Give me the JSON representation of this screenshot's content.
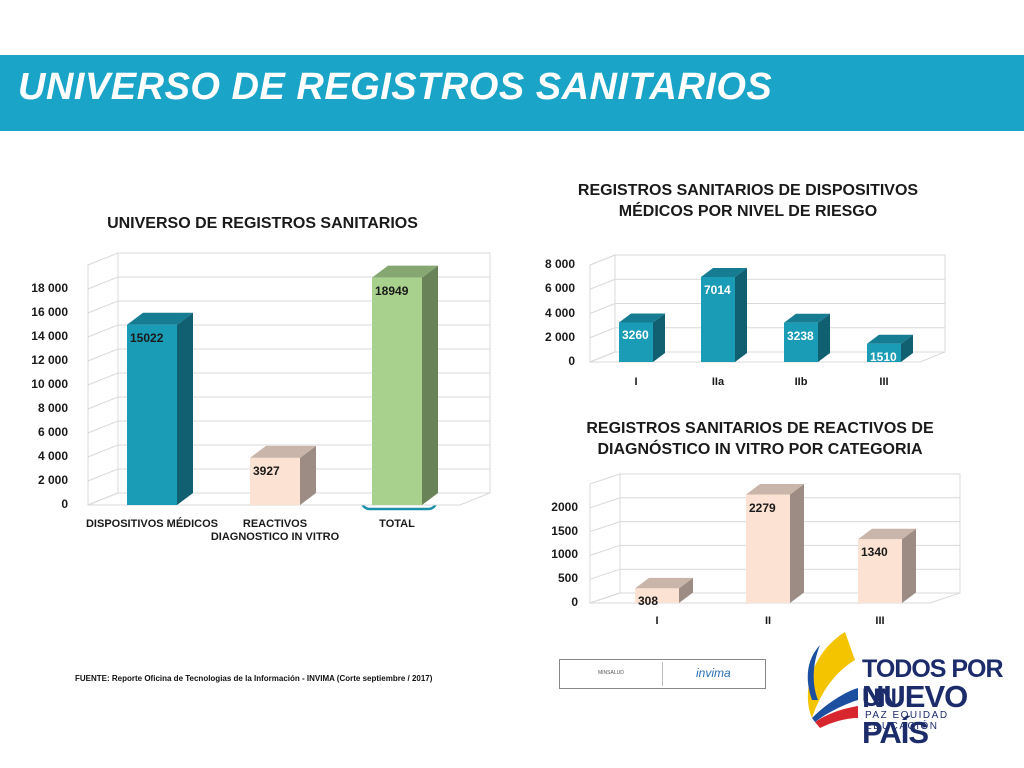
{
  "header": {
    "title": "UNIVERSO DE REGISTROS SANITARIOS"
  },
  "chart_data": [
    {
      "type": "bar3d",
      "title": "UNIVERSO DE REGISTROS SANITARIOS",
      "categories": [
        "DISPOSITIVOS MÉDICOS",
        "REACTIVOS DIAGNOSTICO IN VITRO",
        "TOTAL"
      ],
      "values": [
        15022,
        3927,
        18949
      ],
      "colors": [
        "#1a9bb6",
        "#fbe2d3",
        "#a9d18e"
      ],
      "value_label_color": "#1a1a1a",
      "ylim": [
        0,
        20000
      ],
      "yticks": [
        0,
        {
          "value": 2000,
          "label": "2 000"
        },
        {
          "value": 4000,
          "label": "4 000"
        },
        {
          "value": 6000,
          "label": "6 000"
        },
        {
          "value": 8000,
          "label": "8 000"
        },
        {
          "value": 10000,
          "label": "10 000"
        },
        {
          "value": 12000,
          "label": "12 000"
        },
        {
          "value": 14000,
          "label": "14 000"
        },
        {
          "value": 16000,
          "label": "16 000"
        },
        {
          "value": 18000,
          "label": "18 000"
        }
      ]
    },
    {
      "type": "bar3d",
      "title": "REGISTROS SANITARIOS DE DISPOSITIVOS MÉDICOS POR NIVEL DE RIESGO",
      "categories": [
        "I",
        "IIa",
        "IIb",
        "III"
      ],
      "values": [
        3260,
        7014,
        3238,
        1510
      ],
      "color": "#1a9bb6",
      "value_label_color": "#ffffff",
      "ylim": [
        0,
        8000
      ],
      "yticks": [
        0,
        {
          "value": 2000,
          "label": "2 000"
        },
        {
          "value": 4000,
          "label": "4 000"
        },
        {
          "value": 6000,
          "label": "6 000"
        },
        {
          "value": 8000,
          "label": "8 000"
        }
      ]
    },
    {
      "type": "bar3d",
      "title": "REGISTROS SANITARIOS DE REACTIVOS DE DIAGNÓSTICO IN VITRO POR CATEGORIA",
      "categories": [
        "I",
        "II",
        "III"
      ],
      "values": [
        308,
        2279,
        1340
      ],
      "color": "#fbe2d3",
      "value_label_color": "#1a1a1a",
      "ylim": [
        0,
        2500
      ],
      "yticks": [
        0,
        500,
        1000,
        1500,
        2000
      ]
    }
  ],
  "source": "FUENTE: Reporte Oficina de Tecnologias de la Información - INVIMA (Corte  septiembre / 2017)",
  "logos": {
    "ministry": "MINSALUD",
    "agency": "invima",
    "slogan_line1": "TODOS POR UN",
    "slogan_line2": "NUEVO PAÍS",
    "slogan_tagline": "PAZ  EQUIDAD  EDUCACIÓN"
  }
}
